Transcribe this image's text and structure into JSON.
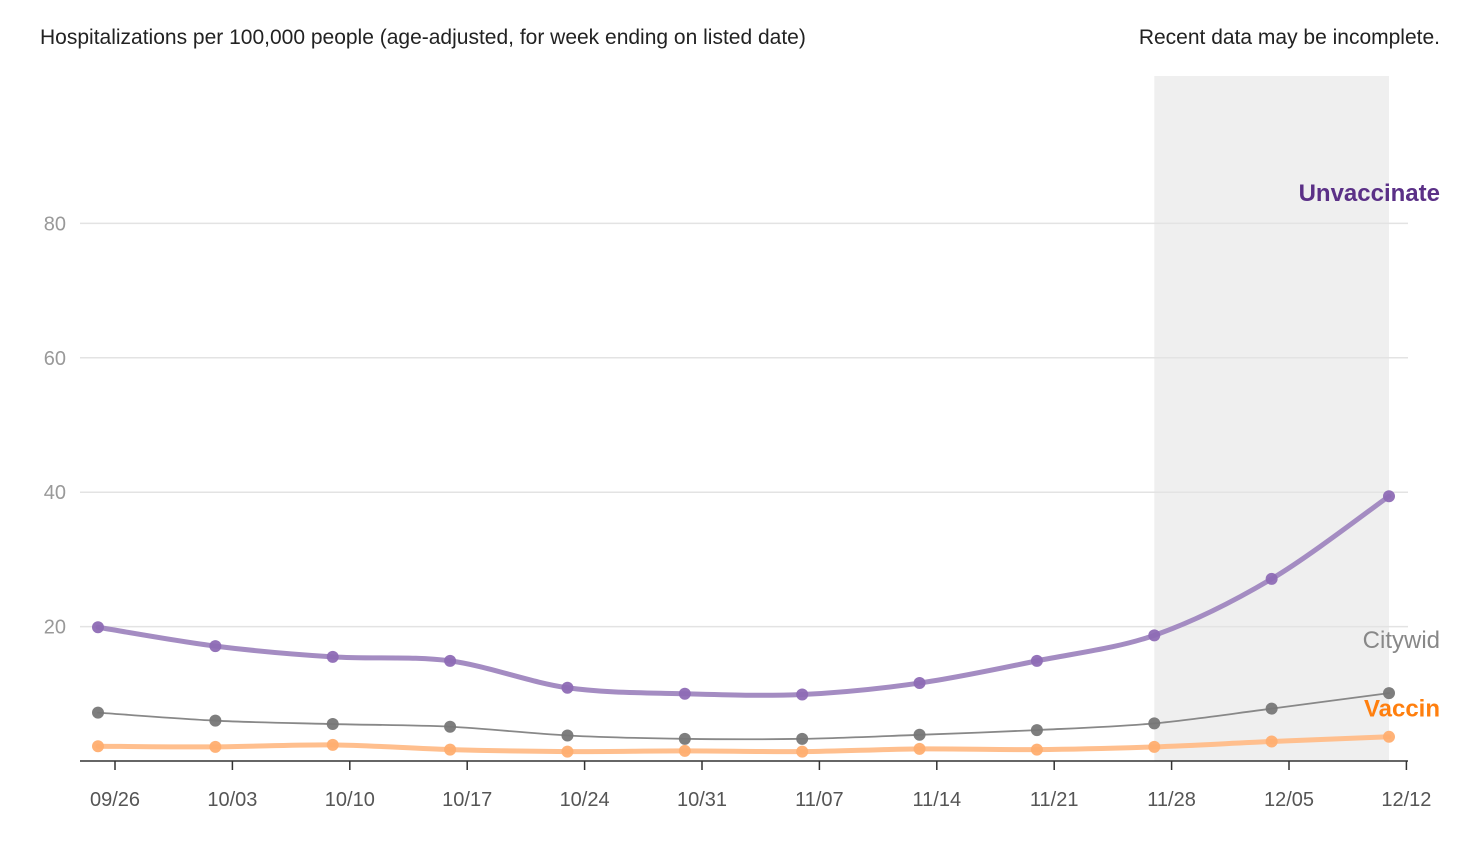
{
  "header": {
    "title": "Hospitalizations per 100,000 people (age-adjusted, for week ending on listed date)",
    "note": "Recent data may be incomplete."
  },
  "chart_data": {
    "type": "line",
    "ylim": [
      0,
      100
    ],
    "yticks": [
      20,
      40,
      60,
      80
    ],
    "grid": true,
    "x_tick_labels": [
      "09/26",
      "10/03",
      "10/10",
      "10/17",
      "10/24",
      "10/31",
      "11/07",
      "11/14",
      "11/21",
      "11/28",
      "12/05",
      "12/12"
    ],
    "x_points": [
      "09/25",
      "10/02",
      "10/09",
      "10/16",
      "10/23",
      "10/30",
      "11/06",
      "11/13",
      "11/20",
      "11/27",
      "12/04",
      "12/11"
    ],
    "incomplete_region": [
      "11/27",
      "12/11"
    ],
    "series": [
      {
        "name": "Unvaccinate",
        "label_color": "#5b3087",
        "line_color": "#a48cc2",
        "dot_color": "#8e6cb5",
        "line_width": 5,
        "values": [
          19.9,
          17.1,
          15.5,
          14.9,
          10.9,
          10.0,
          9.9,
          11.6,
          14.9,
          18.7,
          27.1,
          39.4
        ],
        "label_value": 84.5
      },
      {
        "name": "Citywid",
        "label_color": "#888888",
        "line_color": "#888888",
        "dot_color": "#777777",
        "line_width": 1.8,
        "values": [
          7.2,
          6.0,
          5.5,
          5.1,
          3.8,
          3.3,
          3.3,
          3.9,
          4.6,
          5.6,
          7.8,
          10.1
        ],
        "label_value": 18.0
      },
      {
        "name": "Vaccin",
        "label_color": "#ff7f0e",
        "line_color": "#ffbf8e",
        "dot_color": "#ffae70",
        "line_width": 5,
        "values": [
          2.2,
          2.1,
          2.4,
          1.7,
          1.4,
          1.5,
          1.4,
          1.8,
          1.7,
          2.1,
          2.9,
          3.6
        ],
        "label_value": 7.8
      }
    ]
  }
}
